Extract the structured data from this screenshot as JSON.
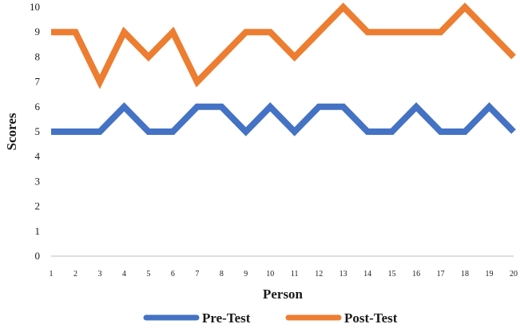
{
  "chart_data": {
    "type": "line",
    "title": "",
    "xlabel": "Person",
    "ylabel": "Scores",
    "categories": [
      "1",
      "2",
      "3",
      "4",
      "5",
      "6",
      "7",
      "8",
      "9",
      "10",
      "11",
      "12",
      "13",
      "14",
      "15",
      "16",
      "17",
      "18",
      "19",
      "20"
    ],
    "ylim": [
      0,
      10
    ],
    "yticks": [
      "0",
      "1",
      "2",
      "3",
      "4",
      "5",
      "6",
      "7",
      "8",
      "9",
      "10"
    ],
    "grid": false,
    "legend_position": "bottom",
    "series": [
      {
        "name": "Pre-Test",
        "color": "#4472C4",
        "values": [
          5,
          5,
          5,
          6,
          5,
          5,
          6,
          6,
          5,
          6,
          5,
          6,
          6,
          5,
          5,
          6,
          5,
          5,
          6,
          5
        ]
      },
      {
        "name": "Post-Test",
        "color": "#ED7D31",
        "values": [
          9,
          9,
          7,
          9,
          8,
          9,
          7,
          8,
          9,
          9,
          8,
          9,
          10,
          9,
          9,
          9,
          9,
          10,
          9,
          8
        ]
      }
    ]
  }
}
